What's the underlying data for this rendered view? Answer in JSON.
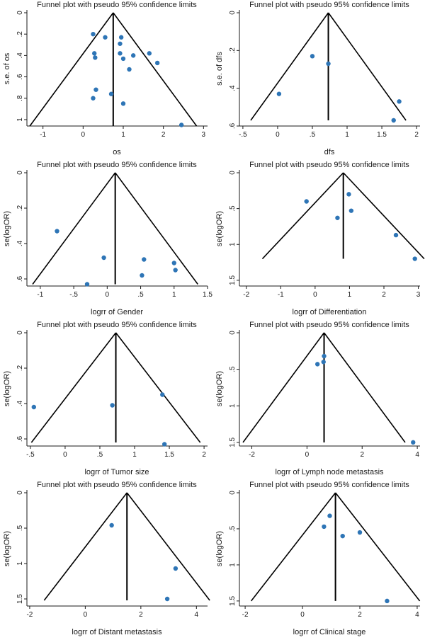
{
  "chart_data": [
    {
      "type": "scatter",
      "title": "Funnel plot with pseudo 95% confidence limits",
      "xlabel": "os",
      "ylabel": "s.e. of os",
      "xlim": [
        -1.4,
        3.1
      ],
      "ylim": [
        0,
        1.06
      ],
      "y_inverted": true,
      "xticks": [
        -1,
        0,
        1,
        2,
        3
      ],
      "xtick_labels": [
        "-1",
        "0",
        "1",
        "2",
        "3"
      ],
      "yticks": [
        0,
        0.2,
        0.4,
        0.6,
        0.8,
        1
      ],
      "ytick_labels": [
        "0",
        ".2",
        ".4",
        ".6",
        ".8",
        "1"
      ],
      "pooled_estimate": 0.75,
      "funnel_max_se": 1.06,
      "points": [
        {
          "x": 0.25,
          "y": 0.2
        },
        {
          "x": 0.55,
          "y": 0.23
        },
        {
          "x": 0.95,
          "y": 0.23
        },
        {
          "x": 0.92,
          "y": 0.29
        },
        {
          "x": 0.28,
          "y": 0.38
        },
        {
          "x": 0.3,
          "y": 0.42
        },
        {
          "x": 0.92,
          "y": 0.38
        },
        {
          "x": 1.0,
          "y": 0.43
        },
        {
          "x": 1.25,
          "y": 0.4
        },
        {
          "x": 1.65,
          "y": 0.38
        },
        {
          "x": 1.85,
          "y": 0.47
        },
        {
          "x": 1.15,
          "y": 0.53
        },
        {
          "x": 0.32,
          "y": 0.72
        },
        {
          "x": 0.25,
          "y": 0.8
        },
        {
          "x": 0.7,
          "y": 0.76
        },
        {
          "x": 1.0,
          "y": 0.85
        },
        {
          "x": 2.45,
          "y": 1.05
        }
      ]
    },
    {
      "type": "scatter",
      "title": "Funnel plot with pseudo 95% confidence limits",
      "xlabel": "dfs",
      "ylabel": "s.e. of dfs",
      "xlim": [
        -0.55,
        2.05
      ],
      "ylim": [
        0,
        0.6
      ],
      "y_inverted": true,
      "xticks": [
        -0.5,
        0,
        0.5,
        1,
        1.5,
        2
      ],
      "xtick_labels": [
        "-.5",
        "0",
        ".5",
        "1",
        "1.5",
        "2"
      ],
      "yticks": [
        0,
        0.2,
        0.4,
        0.6
      ],
      "ytick_labels": [
        "0",
        ".2",
        ".4",
        ".6"
      ],
      "pooled_estimate": 0.73,
      "funnel_max_se": 0.57,
      "points": [
        {
          "x": 0.5,
          "y": 0.23
        },
        {
          "x": 0.73,
          "y": 0.27
        },
        {
          "x": 0.02,
          "y": 0.43
        },
        {
          "x": 1.75,
          "y": 0.47
        },
        {
          "x": 1.67,
          "y": 0.57
        }
      ]
    },
    {
      "type": "scatter",
      "title": "Funnel plot with pseudo 95% confidence limits",
      "xlabel": "logrr of Gender",
      "ylabel": "se(logOR)",
      "xlim": [
        -1.2,
        1.5
      ],
      "ylim": [
        0,
        0.64
      ],
      "y_inverted": true,
      "xticks": [
        -1,
        -0.5,
        0,
        0.5,
        1,
        1.5
      ],
      "xtick_labels": [
        "-1",
        "-.5",
        "0",
        ".5",
        "1",
        "1.5"
      ],
      "yticks": [
        0,
        0.2,
        0.4,
        0.6
      ],
      "ytick_labels": [
        "0",
        ".2",
        ".4",
        ".6"
      ],
      "pooled_estimate": 0.12,
      "funnel_max_se": 0.63,
      "points": [
        {
          "x": -0.75,
          "y": 0.33
        },
        {
          "x": -0.05,
          "y": 0.48
        },
        {
          "x": 0.55,
          "y": 0.49
        },
        {
          "x": 1.0,
          "y": 0.51
        },
        {
          "x": 1.02,
          "y": 0.55
        },
        {
          "x": 0.52,
          "y": 0.58
        },
        {
          "x": -0.3,
          "y": 0.63
        }
      ]
    },
    {
      "type": "scatter",
      "title": "Funnel plot with pseudo 95% confidence limits",
      "xlabel": "logrr of Differentiation",
      "ylabel": "se(logOR)",
      "xlim": [
        -2.2,
        3.05
      ],
      "ylim": [
        0,
        1.58
      ],
      "y_inverted": true,
      "xticks": [
        -2,
        -1,
        0,
        1,
        2,
        3
      ],
      "xtick_labels": [
        "-2",
        "-1",
        "0",
        "1",
        "2",
        "3"
      ],
      "yticks": [
        0,
        0.5,
        1,
        1.5
      ],
      "ytick_labels": [
        "0",
        ".5",
        "1",
        "1.5"
      ],
      "pooled_estimate": 0.82,
      "funnel_max_se": 1.2,
      "points": [
        {
          "x": -0.25,
          "y": 0.4
        },
        {
          "x": 0.98,
          "y": 0.3
        },
        {
          "x": 1.05,
          "y": 0.53
        },
        {
          "x": 0.65,
          "y": 0.63
        },
        {
          "x": 2.35,
          "y": 0.87
        },
        {
          "x": 2.9,
          "y": 1.2
        }
      ]
    },
    {
      "type": "scatter",
      "title": "Funnel plot with pseudo 95% confidence limits",
      "xlabel": "logrr of Tumor size",
      "ylabel": "se(logOR)",
      "xlim": [
        -0.55,
        2.05
      ],
      "ylim": [
        0,
        0.64
      ],
      "y_inverted": true,
      "xticks": [
        -0.5,
        0,
        0.5,
        1,
        1.5,
        2
      ],
      "xtick_labels": [
        "-.5",
        "0",
        ".5",
        "1",
        "1.5",
        "2"
      ],
      "yticks": [
        0,
        0.2,
        0.4,
        0.6
      ],
      "ytick_labels": [
        "0",
        ".2",
        ".4",
        ".6"
      ],
      "pooled_estimate": 0.73,
      "funnel_max_se": 0.62,
      "points": [
        {
          "x": -0.45,
          "y": 0.42
        },
        {
          "x": 0.68,
          "y": 0.41
        },
        {
          "x": 1.4,
          "y": 0.35
        },
        {
          "x": 1.43,
          "y": 0.63
        }
      ]
    },
    {
      "type": "scatter",
      "title": "Funnel plot with pseudo 95% confidence limits",
      "xlabel": "logrr of Lymph node metastasis",
      "ylabel": "se(logOR)",
      "xlim": [
        -2.45,
        4.1
      ],
      "ylim": [
        0,
        1.55
      ],
      "y_inverted": true,
      "xticks": [
        -2,
        0,
        2,
        4
      ],
      "xtick_labels": [
        "-2",
        "0",
        "2",
        "4"
      ],
      "yticks": [
        0,
        0.5,
        1,
        1.5
      ],
      "ytick_labels": [
        "0",
        ".5",
        "1",
        "1.5"
      ],
      "pooled_estimate": 0.62,
      "funnel_max_se": 1.5,
      "points": [
        {
          "x": 0.62,
          "y": 0.32
        },
        {
          "x": 0.6,
          "y": 0.4
        },
        {
          "x": 0.38,
          "y": 0.43
        },
        {
          "x": 3.85,
          "y": 1.5
        }
      ]
    },
    {
      "type": "scatter",
      "title": "Funnel plot with pseudo 95% confidence limits",
      "xlabel": "logrr of Distant metastasis",
      "ylabel": "se(logOR)",
      "xlim": [
        -2.1,
        4.4
      ],
      "ylim": [
        0,
        1.6
      ],
      "y_inverted": true,
      "xticks": [
        -2,
        0,
        2,
        4
      ],
      "xtick_labels": [
        "-2",
        "0",
        "2",
        "4"
      ],
      "yticks": [
        0,
        0.5,
        1,
        1.5
      ],
      "ytick_labels": [
        "0",
        ".5",
        "1",
        "1.5"
      ],
      "pooled_estimate": 1.5,
      "funnel_max_se": 1.52,
      "points": [
        {
          "x": 0.95,
          "y": 0.46
        },
        {
          "x": 3.25,
          "y": 1.07
        },
        {
          "x": 2.95,
          "y": 1.5
        }
      ]
    },
    {
      "type": "scatter",
      "title": "Funnel plot with pseudo 95% confidence limits",
      "xlabel": "logrr of Clinical stage",
      "ylabel": "se(logOR)",
      "xlim": [
        -2.2,
        4.1
      ],
      "ylim": [
        0,
        1.57
      ],
      "y_inverted": true,
      "xticks": [
        -2,
        0,
        2,
        4
      ],
      "xtick_labels": [
        "-2",
        "0",
        "2",
        "4"
      ],
      "yticks": [
        0,
        0.5,
        1,
        1.5
      ],
      "ytick_labels": [
        "0",
        ".5",
        "1",
        "1.5"
      ],
      "pooled_estimate": 1.15,
      "funnel_max_se": 1.5,
      "points": [
        {
          "x": 0.95,
          "y": 0.32
        },
        {
          "x": 0.75,
          "y": 0.47
        },
        {
          "x": 1.4,
          "y": 0.6
        },
        {
          "x": 2.0,
          "y": 0.55
        },
        {
          "x": 2.95,
          "y": 1.5
        }
      ]
    }
  ],
  "colors": {
    "point": "#2e75b6",
    "line": "#000000",
    "axis": "#1a1a1a",
    "background": "#ffffff"
  }
}
